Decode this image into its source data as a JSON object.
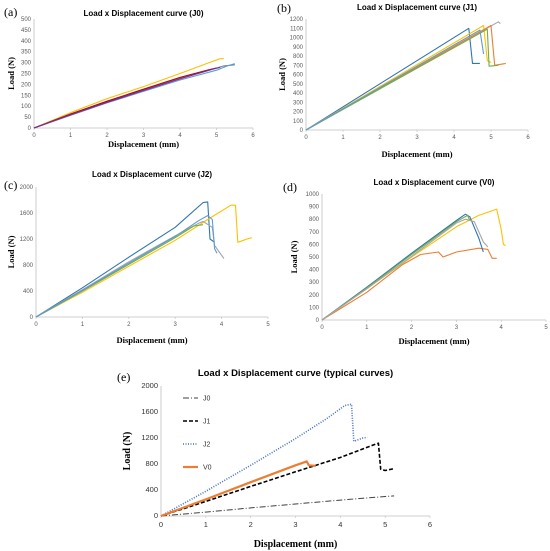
{
  "chart_data": [
    {
      "panel": "(a)",
      "type": "line",
      "title": "Load x Displacement curve (J0)",
      "xlabel": "Displacement (mm)",
      "ylabel": "Load (N)",
      "xlim": [
        0,
        6
      ],
      "ylim": [
        0,
        500
      ],
      "xticks": [
        "0",
        "1",
        "2",
        "3",
        "4",
        "5",
        "6"
      ],
      "yticks": [
        "0",
        "50",
        "100",
        "150",
        "200",
        "250",
        "300",
        "350",
        "400",
        "450",
        "500"
      ],
      "series": [
        {
          "color": "#FFC000",
          "points": [
            [
              0,
              0
            ],
            [
              1,
              70
            ],
            [
              2,
              135
            ],
            [
              3,
              190
            ],
            [
              4,
              250
            ],
            [
              4.8,
              300
            ],
            [
              5.1,
              318
            ],
            [
              5.2,
              318
            ]
          ]
        },
        {
          "color": "#7F7F7F",
          "points": [
            [
              0,
              0
            ],
            [
              1,
              62
            ],
            [
              2,
              120
            ],
            [
              3,
              175
            ],
            [
              4,
              228
            ],
            [
              4.8,
              265
            ],
            [
              5.2,
              285
            ],
            [
              5.5,
              290
            ]
          ]
        },
        {
          "color": "#5B9BD5",
          "points": [
            [
              0,
              0
            ],
            [
              1,
              58
            ],
            [
              2,
              115
            ],
            [
              3,
              168
            ],
            [
              4,
              220
            ],
            [
              5,
              265
            ],
            [
              5.3,
              285
            ],
            [
              5.5,
              295
            ]
          ]
        },
        {
          "color": "#C00000",
          "points": [
            [
              0,
              0
            ],
            [
              1,
              64
            ],
            [
              2,
              123
            ],
            [
              3,
              178
            ],
            [
              4,
              232
            ],
            [
              4.8,
              268
            ],
            [
              5.0,
              275
            ]
          ]
        },
        {
          "color": "#7030A0",
          "points": [
            [
              0,
              0
            ],
            [
              1,
              60
            ],
            [
              2,
              118
            ],
            [
              3,
              172
            ],
            [
              4,
              225
            ],
            [
              4.9,
              270
            ],
            [
              5.1,
              278
            ]
          ]
        }
      ]
    },
    {
      "panel": "(b)",
      "type": "line",
      "title": "Load x Displacement curve (J1)",
      "xlabel": "Displacement (mm)",
      "ylabel": "Load (N)",
      "xlim": [
        0,
        6
      ],
      "ylim": [
        0,
        1200
      ],
      "xticks": [
        "0",
        "1",
        "2",
        "3",
        "4",
        "5",
        "6"
      ],
      "yticks": [
        "0",
        "100",
        "200",
        "300",
        "400",
        "500",
        "600",
        "700",
        "800",
        "900",
        "1000",
        "1100",
        "1200"
      ],
      "series": [
        {
          "color": "#2E75B6",
          "points": [
            [
              0,
              0
            ],
            [
              4.4,
              1100
            ],
            [
              4.5,
              720
            ],
            [
              4.7,
              720
            ]
          ]
        },
        {
          "color": "#FFC000",
          "points": [
            [
              0,
              0
            ],
            [
              4.8,
              1130
            ],
            [
              4.9,
              750
            ],
            [
              5.0,
              730
            ]
          ]
        },
        {
          "color": "#A5A5A5",
          "points": [
            [
              0,
              0
            ],
            [
              5.2,
              1170
            ],
            [
              5.25,
              1150
            ]
          ]
        },
        {
          "color": "#ED7D31",
          "points": [
            [
              0,
              0
            ],
            [
              5.0,
              1130
            ],
            [
              5.1,
              700
            ],
            [
              5.4,
              720
            ]
          ]
        },
        {
          "color": "#70AD47",
          "points": [
            [
              0,
              0
            ],
            [
              4.9,
              1090
            ],
            [
              4.95,
              690
            ],
            [
              5.2,
              700
            ]
          ]
        },
        {
          "color": "#5B9BD5",
          "points": [
            [
              0,
              0
            ],
            [
              4.7,
              1080
            ],
            [
              4.8,
              820
            ]
          ]
        }
      ]
    },
    {
      "panel": "(c)",
      "type": "line",
      "title": "Load x Displacement curve (J2)",
      "xlabel": "Displacement (mm)",
      "ylabel": "Load (N)",
      "xlim": [
        0,
        5
      ],
      "ylim": [
        0,
        2000
      ],
      "xticks": [
        "0",
        "1",
        "2",
        "3",
        "4",
        "5"
      ],
      "yticks": [
        "0",
        "400",
        "800",
        "1200",
        "1600",
        "2000"
      ],
      "series": [
        {
          "color": "#2E75B6",
          "points": [
            [
              0,
              0
            ],
            [
              1,
              450
            ],
            [
              2,
              920
            ],
            [
              3,
              1380
            ],
            [
              3.6,
              1760
            ],
            [
              3.7,
              1770
            ],
            [
              3.75,
              1200
            ],
            [
              3.85,
              1150
            ]
          ]
        },
        {
          "color": "#FFC000",
          "points": [
            [
              0,
              0
            ],
            [
              1,
              380
            ],
            [
              2,
              780
            ],
            [
              3,
              1180
            ],
            [
              3.7,
              1500
            ],
            [
              4.2,
              1720
            ],
            [
              4.3,
              1720
            ],
            [
              4.35,
              1150
            ],
            [
              4.55,
              1200
            ],
            [
              4.65,
              1220
            ]
          ]
        },
        {
          "color": "#A5A5A5",
          "points": [
            [
              0,
              0
            ],
            [
              1,
              420
            ],
            [
              2,
              850
            ],
            [
              3,
              1250
            ],
            [
              3.5,
              1440
            ],
            [
              3.6,
              1470
            ],
            [
              3.8,
              1380
            ],
            [
              3.85,
              1100
            ],
            [
              4.05,
              900
            ]
          ]
        },
        {
          "color": "#70AD47",
          "points": [
            [
              0,
              0
            ],
            [
              1,
              400
            ],
            [
              2,
              810
            ],
            [
              3,
              1220
            ],
            [
              3.4,
              1400
            ],
            [
              3.6,
              1420
            ]
          ]
        },
        {
          "color": "#5B9BD5",
          "points": [
            [
              0,
              0
            ],
            [
              1,
              410
            ],
            [
              2,
              830
            ],
            [
              3,
              1240
            ],
            [
              3.5,
              1480
            ],
            [
              3.7,
              1560
            ],
            [
              3.8,
              1500
            ],
            [
              3.85,
              1050
            ],
            [
              3.9,
              980
            ]
          ]
        }
      ]
    },
    {
      "panel": "(d)",
      "type": "line",
      "title": "Load x Displacement curve (V0)",
      "xlabel": "Displacement (mm)",
      "ylabel": "Load (N)",
      "xlim": [
        0,
        5
      ],
      "ylim": [
        0,
        1000
      ],
      "xticks": [
        "0",
        "1",
        "2",
        "3",
        "4",
        "5"
      ],
      "yticks": [
        "0",
        "100",
        "200",
        "300",
        "400",
        "500",
        "600",
        "700",
        "800",
        "900",
        "1000"
      ],
      "series": [
        {
          "color": "#ED7D31",
          "points": [
            [
              0,
              0
            ],
            [
              1,
              220
            ],
            [
              1.8,
              440
            ],
            [
              2.2,
              520
            ],
            [
              2.6,
              540
            ],
            [
              2.7,
              500
            ],
            [
              3,
              540
            ],
            [
              3.5,
              570
            ],
            [
              3.7,
              560
            ],
            [
              3.8,
              490
            ],
            [
              3.9,
              490
            ]
          ]
        },
        {
          "color": "#FFC000",
          "points": [
            [
              0,
              0
            ],
            [
              1,
              250
            ],
            [
              2,
              500
            ],
            [
              3,
              740
            ],
            [
              3.5,
              830
            ],
            [
              3.9,
              880
            ],
            [
              4.0,
              720
            ],
            [
              4.05,
              600
            ],
            [
              4.1,
              590
            ]
          ]
        },
        {
          "color": "#2E75B6",
          "points": [
            [
              0,
              0
            ],
            [
              1,
              260
            ],
            [
              2,
              530
            ],
            [
              3,
              790
            ],
            [
              3.2,
              840
            ],
            [
              3.3,
              820
            ],
            [
              3.5,
              650
            ],
            [
              3.6,
              540
            ]
          ]
        },
        {
          "color": "#70AD47",
          "points": [
            [
              0,
              0
            ],
            [
              1,
              255
            ],
            [
              2,
              520
            ],
            [
              3,
              780
            ],
            [
              3.25,
              830
            ],
            [
              3.3,
              790
            ]
          ]
        },
        {
          "color": "#A5A5A5",
          "points": [
            [
              0,
              0
            ],
            [
              1,
              248
            ],
            [
              2,
              505
            ],
            [
              3,
              770
            ],
            [
              3.2,
              800
            ],
            [
              3.4,
              780
            ],
            [
              3.6,
              620
            ],
            [
              3.7,
              580
            ]
          ]
        }
      ]
    },
    {
      "panel": "(e)",
      "type": "line",
      "title": "Load x Displacement curve (typical curves)",
      "xlabel": "Displacement (mm)",
      "ylabel": "Load (N)",
      "xlim": [
        0,
        6
      ],
      "ylim": [
        0,
        2000
      ],
      "xticks": [
        "0",
        "1",
        "2",
        "3",
        "4",
        "5",
        "6"
      ],
      "yticks": [
        "0",
        "400",
        "800",
        "1200",
        "1600",
        "2000"
      ],
      "legend": [
        "J0",
        "J1",
        "J2",
        "V0"
      ],
      "legend_position": "top-left",
      "series": [
        {
          "name": "J0",
          "color": "#404040",
          "dash": "6,2,1,2",
          "width": 1,
          "points": [
            [
              0,
              0
            ],
            [
              1,
              60
            ],
            [
              2,
              125
            ],
            [
              3,
              185
            ],
            [
              4,
              245
            ],
            [
              5,
              300
            ],
            [
              5.2,
              310
            ]
          ]
        },
        {
          "name": "J1",
          "color": "#000000",
          "dash": "4,2",
          "width": 1.6,
          "points": [
            [
              0,
              0
            ],
            [
              1,
              225
            ],
            [
              2,
              455
            ],
            [
              3,
              680
            ],
            [
              4,
              900
            ],
            [
              4.8,
              1110
            ],
            [
              4.85,
              1120
            ],
            [
              4.9,
              720
            ],
            [
              5.0,
              700
            ],
            [
              5.2,
              730
            ]
          ]
        },
        {
          "name": "J2",
          "color": "#4472C4",
          "dash": "1,1.5",
          "width": 1.6,
          "points": [
            [
              0,
              0
            ],
            [
              1,
              380
            ],
            [
              2,
              780
            ],
            [
              3,
              1190
            ],
            [
              3.7,
              1500
            ],
            [
              4.1,
              1700
            ],
            [
              4.25,
              1720
            ],
            [
              4.3,
              1150
            ],
            [
              4.5,
              1200
            ],
            [
              4.6,
              1210
            ]
          ]
        },
        {
          "name": "V0",
          "color": "#ED7D31",
          "dash": "",
          "width": 2.2,
          "points": [
            [
              0,
              0
            ],
            [
              1,
              255
            ],
            [
              2,
              520
            ],
            [
              3,
              780
            ],
            [
              3.25,
              840
            ],
            [
              3.3,
              780
            ],
            [
              3.45,
              770
            ]
          ]
        }
      ]
    }
  ]
}
